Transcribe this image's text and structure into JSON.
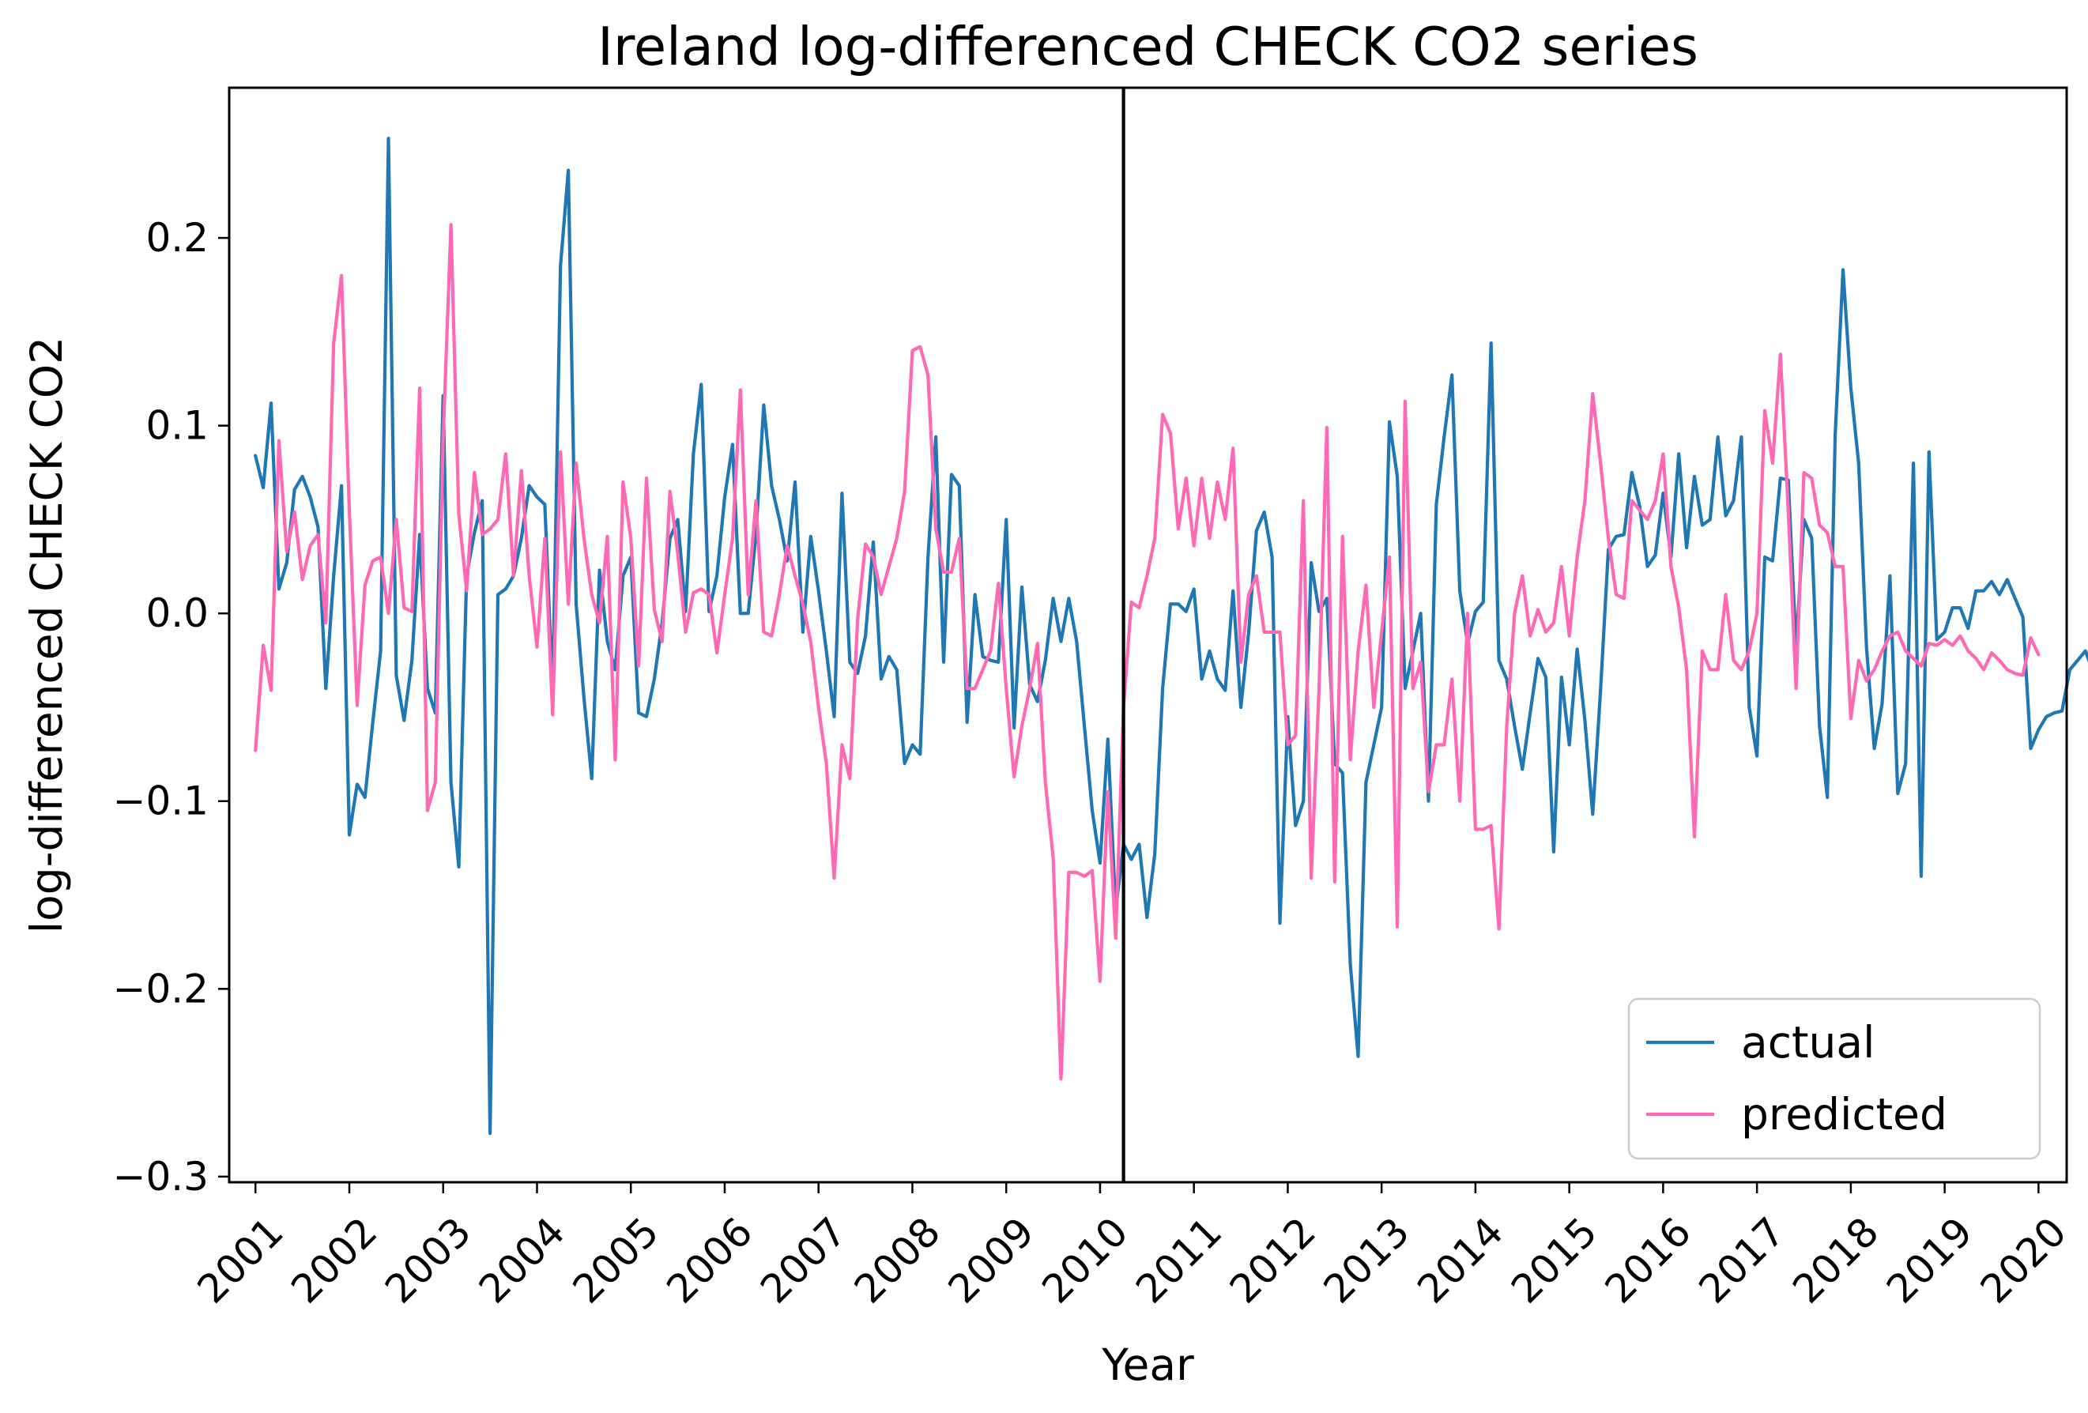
{
  "chart_data": {
    "type": "line",
    "title": "Ireland log-differenced CHECK CO2 series",
    "xlabel": "Year",
    "ylabel": "log-differenced CHECK CO2",
    "xlim": [
      2000.72,
      2020.3
    ],
    "ylim": [
      -0.303,
      0.28
    ],
    "x_ticks": [
      2001,
      2002,
      2003,
      2004,
      2005,
      2006,
      2007,
      2008,
      2009,
      2010,
      2011,
      2012,
      2013,
      2014,
      2015,
      2016,
      2017,
      2018,
      2019,
      2020
    ],
    "x_tick_labels": [
      "2001",
      "2002",
      "2003",
      "2004",
      "2005",
      "2006",
      "2007",
      "2008",
      "2009",
      "2010",
      "2011",
      "2012",
      "2013",
      "2014",
      "2015",
      "2016",
      "2017",
      "2018",
      "2019",
      "2020"
    ],
    "y_ticks": [
      0.2,
      0.1,
      0.0,
      -0.1,
      -0.2,
      -0.3
    ],
    "y_tick_labels": [
      "0.2",
      "0.1",
      "0.0",
      "−0.1",
      "−0.2",
      "−0.3"
    ],
    "vline_x": 2010.25,
    "vline_color": "#000000",
    "legend_position": "lower-right",
    "x_start": 2001.0,
    "x_step": 0.0833333,
    "series": [
      {
        "name": "actual",
        "color": "#1f77b4",
        "values": [
          0.084,
          0.067,
          0.112,
          0.013,
          0.027,
          0.066,
          0.073,
          0.062,
          0.046,
          -0.04,
          0.02,
          0.068,
          -0.118,
          -0.091,
          -0.098,
          -0.058,
          -0.02,
          0.253,
          -0.033,
          -0.057,
          -0.025,
          0.042,
          -0.04,
          -0.053,
          0.116,
          -0.09,
          -0.135,
          0.02,
          0.043,
          0.06,
          -0.277,
          0.01,
          0.013,
          0.02,
          0.04,
          0.068,
          0.062,
          0.058,
          -0.043,
          0.185,
          0.236,
          0.005,
          -0.045,
          -0.088,
          0.023,
          -0.015,
          -0.03,
          0.02,
          0.03,
          -0.053,
          -0.055,
          -0.035,
          -0.005,
          0.04,
          0.05,
          0.001,
          0.085,
          0.122,
          0.001,
          0.02,
          0.062,
          0.09,
          0.0,
          0.0,
          0.042,
          0.111,
          0.068,
          0.05,
          0.028,
          0.07,
          -0.01,
          0.041,
          0.012,
          -0.02,
          -0.055,
          0.064,
          -0.026,
          -0.032,
          -0.012,
          0.038,
          -0.035,
          -0.023,
          -0.03,
          -0.08,
          -0.07,
          -0.075,
          0.03,
          0.094,
          -0.026,
          0.074,
          0.068,
          -0.058,
          0.01,
          -0.023,
          -0.025,
          -0.026,
          0.05,
          -0.061,
          0.014,
          -0.038,
          -0.047,
          -0.025,
          0.008,
          -0.015,
          0.008,
          -0.015,
          -0.06,
          -0.105,
          -0.133,
          -0.067,
          -0.158,
          -0.123,
          -0.131,
          -0.123,
          -0.162,
          -0.128,
          -0.04,
          0.005,
          0.005,
          0.001,
          0.013,
          -0.035,
          -0.02,
          -0.035,
          -0.041,
          0.012,
          -0.05,
          -0.01,
          0.044,
          0.054,
          0.03,
          -0.165,
          -0.055,
          -0.113,
          -0.1,
          0.027,
          0.001,
          0.008,
          -0.08,
          -0.085,
          -0.187,
          -0.236,
          -0.09,
          -0.07,
          -0.05,
          0.102,
          0.073,
          -0.04,
          -0.02,
          0.0,
          -0.1,
          0.058,
          0.094,
          0.127,
          0.012,
          -0.016,
          0.001,
          0.006,
          0.144,
          -0.025,
          -0.035,
          -0.06,
          -0.083,
          -0.053,
          -0.024,
          -0.034,
          -0.127,
          -0.034,
          -0.07,
          -0.019,
          -0.057,
          -0.107,
          -0.041,
          0.034,
          0.041,
          0.042,
          0.075,
          0.057,
          0.025,
          0.031,
          0.064,
          0.03,
          0.085,
          0.035,
          0.073,
          0.047,
          0.05,
          0.094,
          0.052,
          0.06,
          0.094,
          -0.05,
          -0.076,
          0.03,
          0.028,
          0.072,
          0.071,
          -0.018,
          0.05,
          0.04,
          -0.06,
          -0.098,
          0.095,
          0.183,
          0.12,
          0.08,
          -0.018,
          -0.072,
          -0.048,
          0.02,
          -0.096,
          -0.08,
          0.08,
          -0.14,
          0.086,
          -0.014,
          -0.01,
          0.003,
          0.003,
          -0.008,
          0.012,
          0.012,
          0.017,
          0.01,
          0.018,
          0.008,
          -0.002,
          -0.072,
          -0.062,
          -0.055,
          -0.053,
          -0.052,
          -0.03,
          -0.025,
          -0.02,
          -0.031,
          -0.033
        ]
      },
      {
        "name": "predicted",
        "color": "#ff69b4",
        "values": [
          -0.073,
          -0.017,
          -0.041,
          0.092,
          0.033,
          0.054,
          0.018,
          0.036,
          0.042,
          -0.005,
          0.144,
          0.18,
          0.055,
          -0.049,
          0.015,
          0.028,
          0.03,
          0.0,
          0.05,
          0.003,
          0.001,
          0.12,
          -0.105,
          -0.09,
          0.093,
          0.207,
          0.053,
          0.012,
          0.075,
          0.042,
          0.045,
          0.05,
          0.085,
          0.02,
          0.076,
          0.02,
          -0.018,
          0.04,
          -0.054,
          0.086,
          0.005,
          0.08,
          0.04,
          0.01,
          -0.005,
          0.041,
          -0.078,
          0.07,
          0.04,
          -0.028,
          0.072,
          0.002,
          -0.015,
          0.065,
          0.032,
          -0.01,
          0.011,
          0.013,
          0.01,
          -0.021,
          0.01,
          0.04,
          0.119,
          0.01,
          0.06,
          -0.01,
          -0.012,
          0.01,
          0.036,
          0.02,
          0.005,
          -0.015,
          -0.05,
          -0.08,
          -0.141,
          -0.07,
          -0.088,
          -0.003,
          0.037,
          0.03,
          0.01,
          0.025,
          0.04,
          0.065,
          0.14,
          0.142,
          0.127,
          0.045,
          0.022,
          0.022,
          0.04,
          -0.04,
          -0.04,
          -0.03,
          -0.02,
          0.016,
          -0.04,
          -0.087,
          -0.06,
          -0.04,
          -0.016,
          -0.09,
          -0.13,
          -0.248,
          -0.138,
          -0.138,
          -0.14,
          -0.137,
          -0.196,
          -0.095,
          -0.173,
          -0.05,
          0.006,
          0.003,
          0.02,
          0.04,
          0.106,
          0.096,
          0.045,
          0.072,
          0.036,
          0.072,
          0.04,
          0.07,
          0.05,
          0.088,
          -0.026,
          0.01,
          0.02,
          -0.01,
          -0.01,
          -0.01,
          -0.07,
          -0.065,
          0.06,
          -0.141,
          -0.04,
          0.099,
          -0.143,
          0.041,
          -0.078,
          -0.02,
          0.015,
          -0.05,
          -0.01,
          0.03,
          -0.167,
          0.113,
          -0.04,
          -0.026,
          -0.095,
          -0.07,
          -0.07,
          -0.035,
          -0.1,
          0.0,
          -0.115,
          -0.115,
          -0.113,
          -0.168,
          -0.06,
          0.0,
          0.02,
          -0.012,
          0.002,
          -0.01,
          -0.005,
          0.025,
          -0.012,
          0.03,
          0.06,
          0.117,
          0.08,
          0.04,
          0.01,
          0.008,
          0.06,
          0.055,
          0.05,
          0.06,
          0.085,
          0.025,
          0.003,
          -0.03,
          -0.119,
          -0.02,
          -0.03,
          -0.03,
          0.01,
          -0.025,
          -0.03,
          -0.02,
          0.0,
          0.108,
          0.08,
          0.138,
          0.055,
          -0.04,
          0.075,
          0.072,
          0.047,
          0.043,
          0.025,
          0.025,
          -0.056,
          -0.025,
          -0.036,
          -0.03,
          -0.02,
          -0.012,
          -0.01,
          -0.02,
          -0.024,
          -0.028,
          -0.016,
          -0.017,
          -0.014,
          -0.017,
          -0.012,
          -0.02,
          -0.024,
          -0.03,
          -0.021,
          -0.025,
          -0.03,
          -0.032,
          -0.033,
          -0.013,
          -0.022
        ]
      }
    ]
  }
}
